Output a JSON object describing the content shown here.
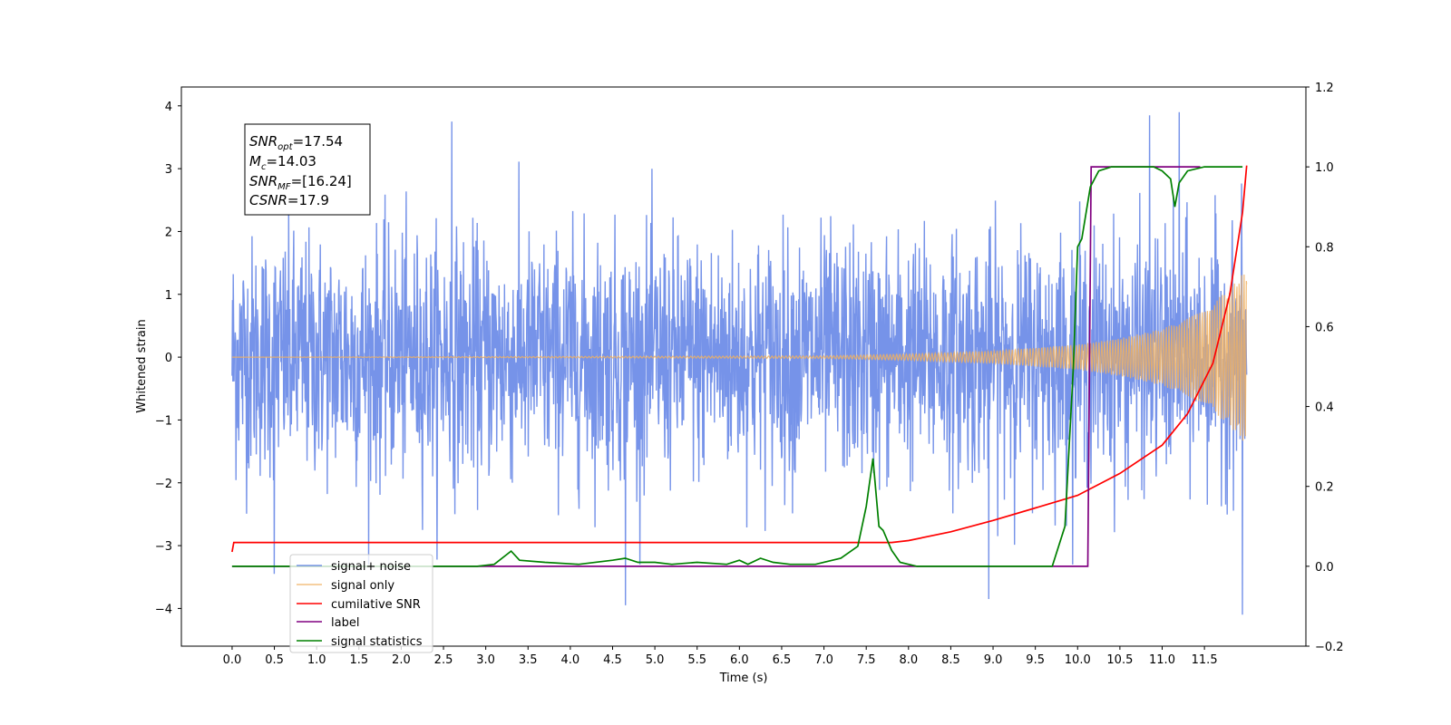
{
  "chart_data": {
    "type": "line",
    "title": "",
    "xlabel": "Time (s)",
    "ylabel": "Whitened strain",
    "xlim": [
      -0.6,
      12.7
    ],
    "ylim": [
      -4.6,
      4.3
    ],
    "y2lim": [
      -0.2,
      1.2
    ],
    "x_ticks": [
      0.0,
      0.5,
      1.0,
      1.5,
      2.0,
      2.5,
      3.0,
      3.5,
      4.0,
      4.5,
      5.0,
      5.5,
      6.0,
      6.5,
      7.0,
      7.5,
      8.0,
      8.5,
      9.0,
      9.5,
      10.0,
      10.5,
      11.0,
      11.5
    ],
    "x_tick_labels": [
      "0.0",
      "0.5",
      "1.0",
      "1.5",
      "2.0",
      "2.5",
      "3.0",
      "3.5",
      "4.0",
      "4.5",
      "5.0",
      "5.5",
      "6.0",
      "6.5",
      "7.0",
      "7.5",
      "8.0",
      "8.5",
      "9.0",
      "9.5",
      "10.0",
      "10.5",
      "11.0",
      "11.5"
    ],
    "y_ticks": [
      -4,
      -3,
      -2,
      -1,
      0,
      1,
      2,
      3,
      4
    ],
    "y_tick_labels": [
      "−4",
      "−3",
      "−2",
      "−1",
      "0",
      "1",
      "2",
      "3",
      "4"
    ],
    "y2_ticks": [
      -0.2,
      0.0,
      0.2,
      0.4,
      0.6,
      0.8,
      1.0,
      1.2
    ],
    "y2_tick_labels": [
      "−0.2",
      "0.0",
      "0.2",
      "0.4",
      "0.6",
      "0.8",
      "1.0",
      "1.2"
    ],
    "legend_location": "lower left",
    "annotation": {
      "snr_opt": "=17.54",
      "mc": "=14.03",
      "snr_mf": "=[16.24]",
      "csnr": "=17.9"
    },
    "series": [
      {
        "name": "signal+ noise",
        "axis": "left",
        "color": "#4169e1",
        "style": "noise",
        "t_start": 0.0,
        "t_end": 12.0,
        "envelope": 2.1,
        "note_peaks": [
          [
            2.6,
            3.75
          ],
          [
            10.85,
            3.85
          ],
          [
            11.2,
            3.9
          ],
          [
            11.95,
            -4.1
          ],
          [
            8.95,
            -3.85
          ],
          [
            4.65,
            -3.95
          ],
          [
            0.5,
            -3.45
          ]
        ]
      },
      {
        "name": "signal only",
        "axis": "left",
        "color": "#f0b060",
        "style": "chirp",
        "t_start": 0.0,
        "t_end": 12.0,
        "amp_points": [
          [
            0.0,
            0.0
          ],
          [
            7.0,
            0.02
          ],
          [
            8.0,
            0.05
          ],
          [
            9.0,
            0.1
          ],
          [
            10.0,
            0.2
          ],
          [
            10.5,
            0.3
          ],
          [
            11.0,
            0.45
          ],
          [
            11.5,
            0.75
          ],
          [
            11.8,
            1.1
          ],
          [
            12.0,
            1.4
          ]
        ]
      },
      {
        "name": "cumilative SNR",
        "axis": "left",
        "color": "#ff0000",
        "style": "line",
        "points": [
          [
            0.0,
            -3.1
          ],
          [
            0.02,
            -2.95
          ],
          [
            7.8,
            -2.95
          ],
          [
            8.0,
            -2.92
          ],
          [
            8.5,
            -2.78
          ],
          [
            9.0,
            -2.6
          ],
          [
            9.5,
            -2.4
          ],
          [
            10.0,
            -2.2
          ],
          [
            10.5,
            -1.85
          ],
          [
            11.0,
            -1.4
          ],
          [
            11.3,
            -0.9
          ],
          [
            11.6,
            -0.1
          ],
          [
            11.8,
            1.0
          ],
          [
            11.95,
            2.3
          ],
          [
            12.0,
            3.05
          ]
        ]
      },
      {
        "name": "label",
        "axis": "right",
        "color": "#800080",
        "style": "line",
        "points": [
          [
            0.0,
            0.0
          ],
          [
            10.12,
            0.0
          ],
          [
            10.16,
            1.0
          ],
          [
            11.45,
            1.0
          ]
        ]
      },
      {
        "name": "signal statistics",
        "axis": "right",
        "color": "#008000",
        "style": "line",
        "points": [
          [
            0.0,
            0.0
          ],
          [
            2.9,
            0.0
          ],
          [
            3.1,
            0.005
          ],
          [
            3.3,
            0.038
          ],
          [
            3.4,
            0.015
          ],
          [
            3.7,
            0.01
          ],
          [
            4.1,
            0.005
          ],
          [
            4.5,
            0.015
          ],
          [
            4.65,
            0.02
          ],
          [
            4.8,
            0.01
          ],
          [
            5.0,
            0.01
          ],
          [
            5.2,
            0.005
          ],
          [
            5.5,
            0.01
          ],
          [
            5.85,
            0.005
          ],
          [
            6.0,
            0.015
          ],
          [
            6.1,
            0.005
          ],
          [
            6.25,
            0.02
          ],
          [
            6.4,
            0.01
          ],
          [
            6.6,
            0.005
          ],
          [
            6.9,
            0.005
          ],
          [
            7.2,
            0.02
          ],
          [
            7.4,
            0.05
          ],
          [
            7.5,
            0.15
          ],
          [
            7.58,
            0.27
          ],
          [
            7.65,
            0.1
          ],
          [
            7.7,
            0.09
          ],
          [
            7.8,
            0.04
          ],
          [
            7.9,
            0.01
          ],
          [
            8.1,
            0.0
          ],
          [
            9.7,
            0.0
          ],
          [
            9.85,
            0.1
          ],
          [
            9.95,
            0.5
          ],
          [
            10.0,
            0.8
          ],
          [
            10.05,
            0.82
          ],
          [
            10.15,
            0.95
          ],
          [
            10.25,
            0.99
          ],
          [
            10.4,
            1.0
          ],
          [
            10.9,
            1.0
          ],
          [
            11.0,
            0.99
          ],
          [
            11.1,
            0.97
          ],
          [
            11.15,
            0.9
          ],
          [
            11.2,
            0.96
          ],
          [
            11.3,
            0.99
          ],
          [
            11.5,
            1.0
          ],
          [
            11.95,
            1.0
          ]
        ]
      }
    ]
  }
}
